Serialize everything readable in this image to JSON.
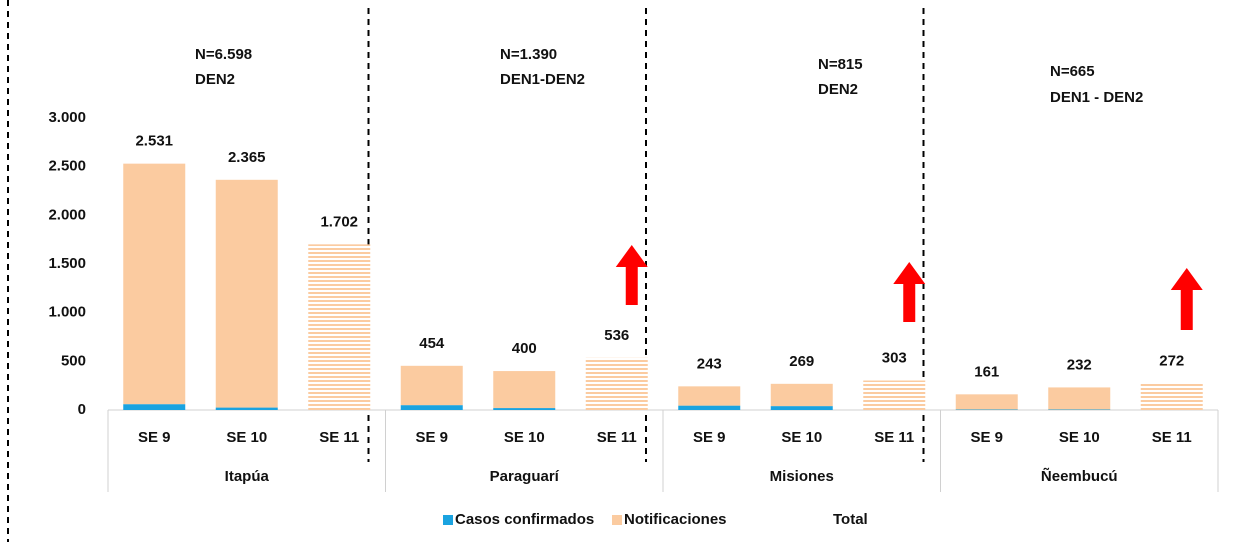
{
  "chart_data": {
    "type": "grouped_stacked_bar",
    "groups": [
      {
        "name": "Itapúa",
        "categories": [
          "SE 9",
          "SE 10",
          "SE 11"
        ],
        "annotation": [
          "N=6.598",
          "DEN2"
        ],
        "arrow": false
      },
      {
        "name": "Paraguarí",
        "categories": [
          "SE 9",
          "SE 10",
          "SE 11"
        ],
        "annotation": [
          "N=1.390",
          "DEN1-DEN2"
        ],
        "arrow": true
      },
      {
        "name": "Misiones",
        "categories": [
          "SE 9",
          "SE 10",
          "SE 11"
        ],
        "annotation": [
          "N=815",
          "DEN2"
        ],
        "arrow": true
      },
      {
        "name": "Ñeembucú",
        "categories": [
          "SE 9",
          "SE 10",
          "SE 11"
        ],
        "annotation": [
          "N=665",
          "DEN1 - DEN2"
        ],
        "arrow": true
      }
    ],
    "hatch_category": "SE 11",
    "series": [
      {
        "name": "Casos confirmados",
        "color": "#1aa3e0",
        "values": [
          60,
          25,
          0,
          50,
          20,
          0,
          45,
          40,
          0,
          5,
          5,
          0
        ]
      },
      {
        "name": "Notificaciones",
        "color": "#fbcba0",
        "values": [
          2471,
          2340,
          1702,
          404,
          380,
          536,
          198,
          229,
          303,
          156,
          227,
          272
        ]
      },
      {
        "name": "Total",
        "color": "none",
        "values": [
          2531,
          2365,
          1702,
          454,
          400,
          536,
          243,
          269,
          303,
          161,
          232,
          272
        ],
        "value_labels": [
          "2.531",
          "2.365",
          "1.702",
          "454",
          "400",
          "536",
          "243",
          "269",
          "303",
          "161",
          "232",
          "272"
        ]
      }
    ],
    "ylim": [
      0,
      3000
    ],
    "yticks": [
      0,
      500,
      {
        "value": 1000,
        "label": "1.000"
      },
      {
        "value": 1500,
        "label": "1.500"
      },
      {
        "value": 2000,
        "label": "2.000"
      },
      {
        "value": 2500,
        "label": "2.500"
      },
      {
        "value": 3000,
        "label": "3.000"
      }
    ],
    "arrow_color": "#ff0000"
  }
}
